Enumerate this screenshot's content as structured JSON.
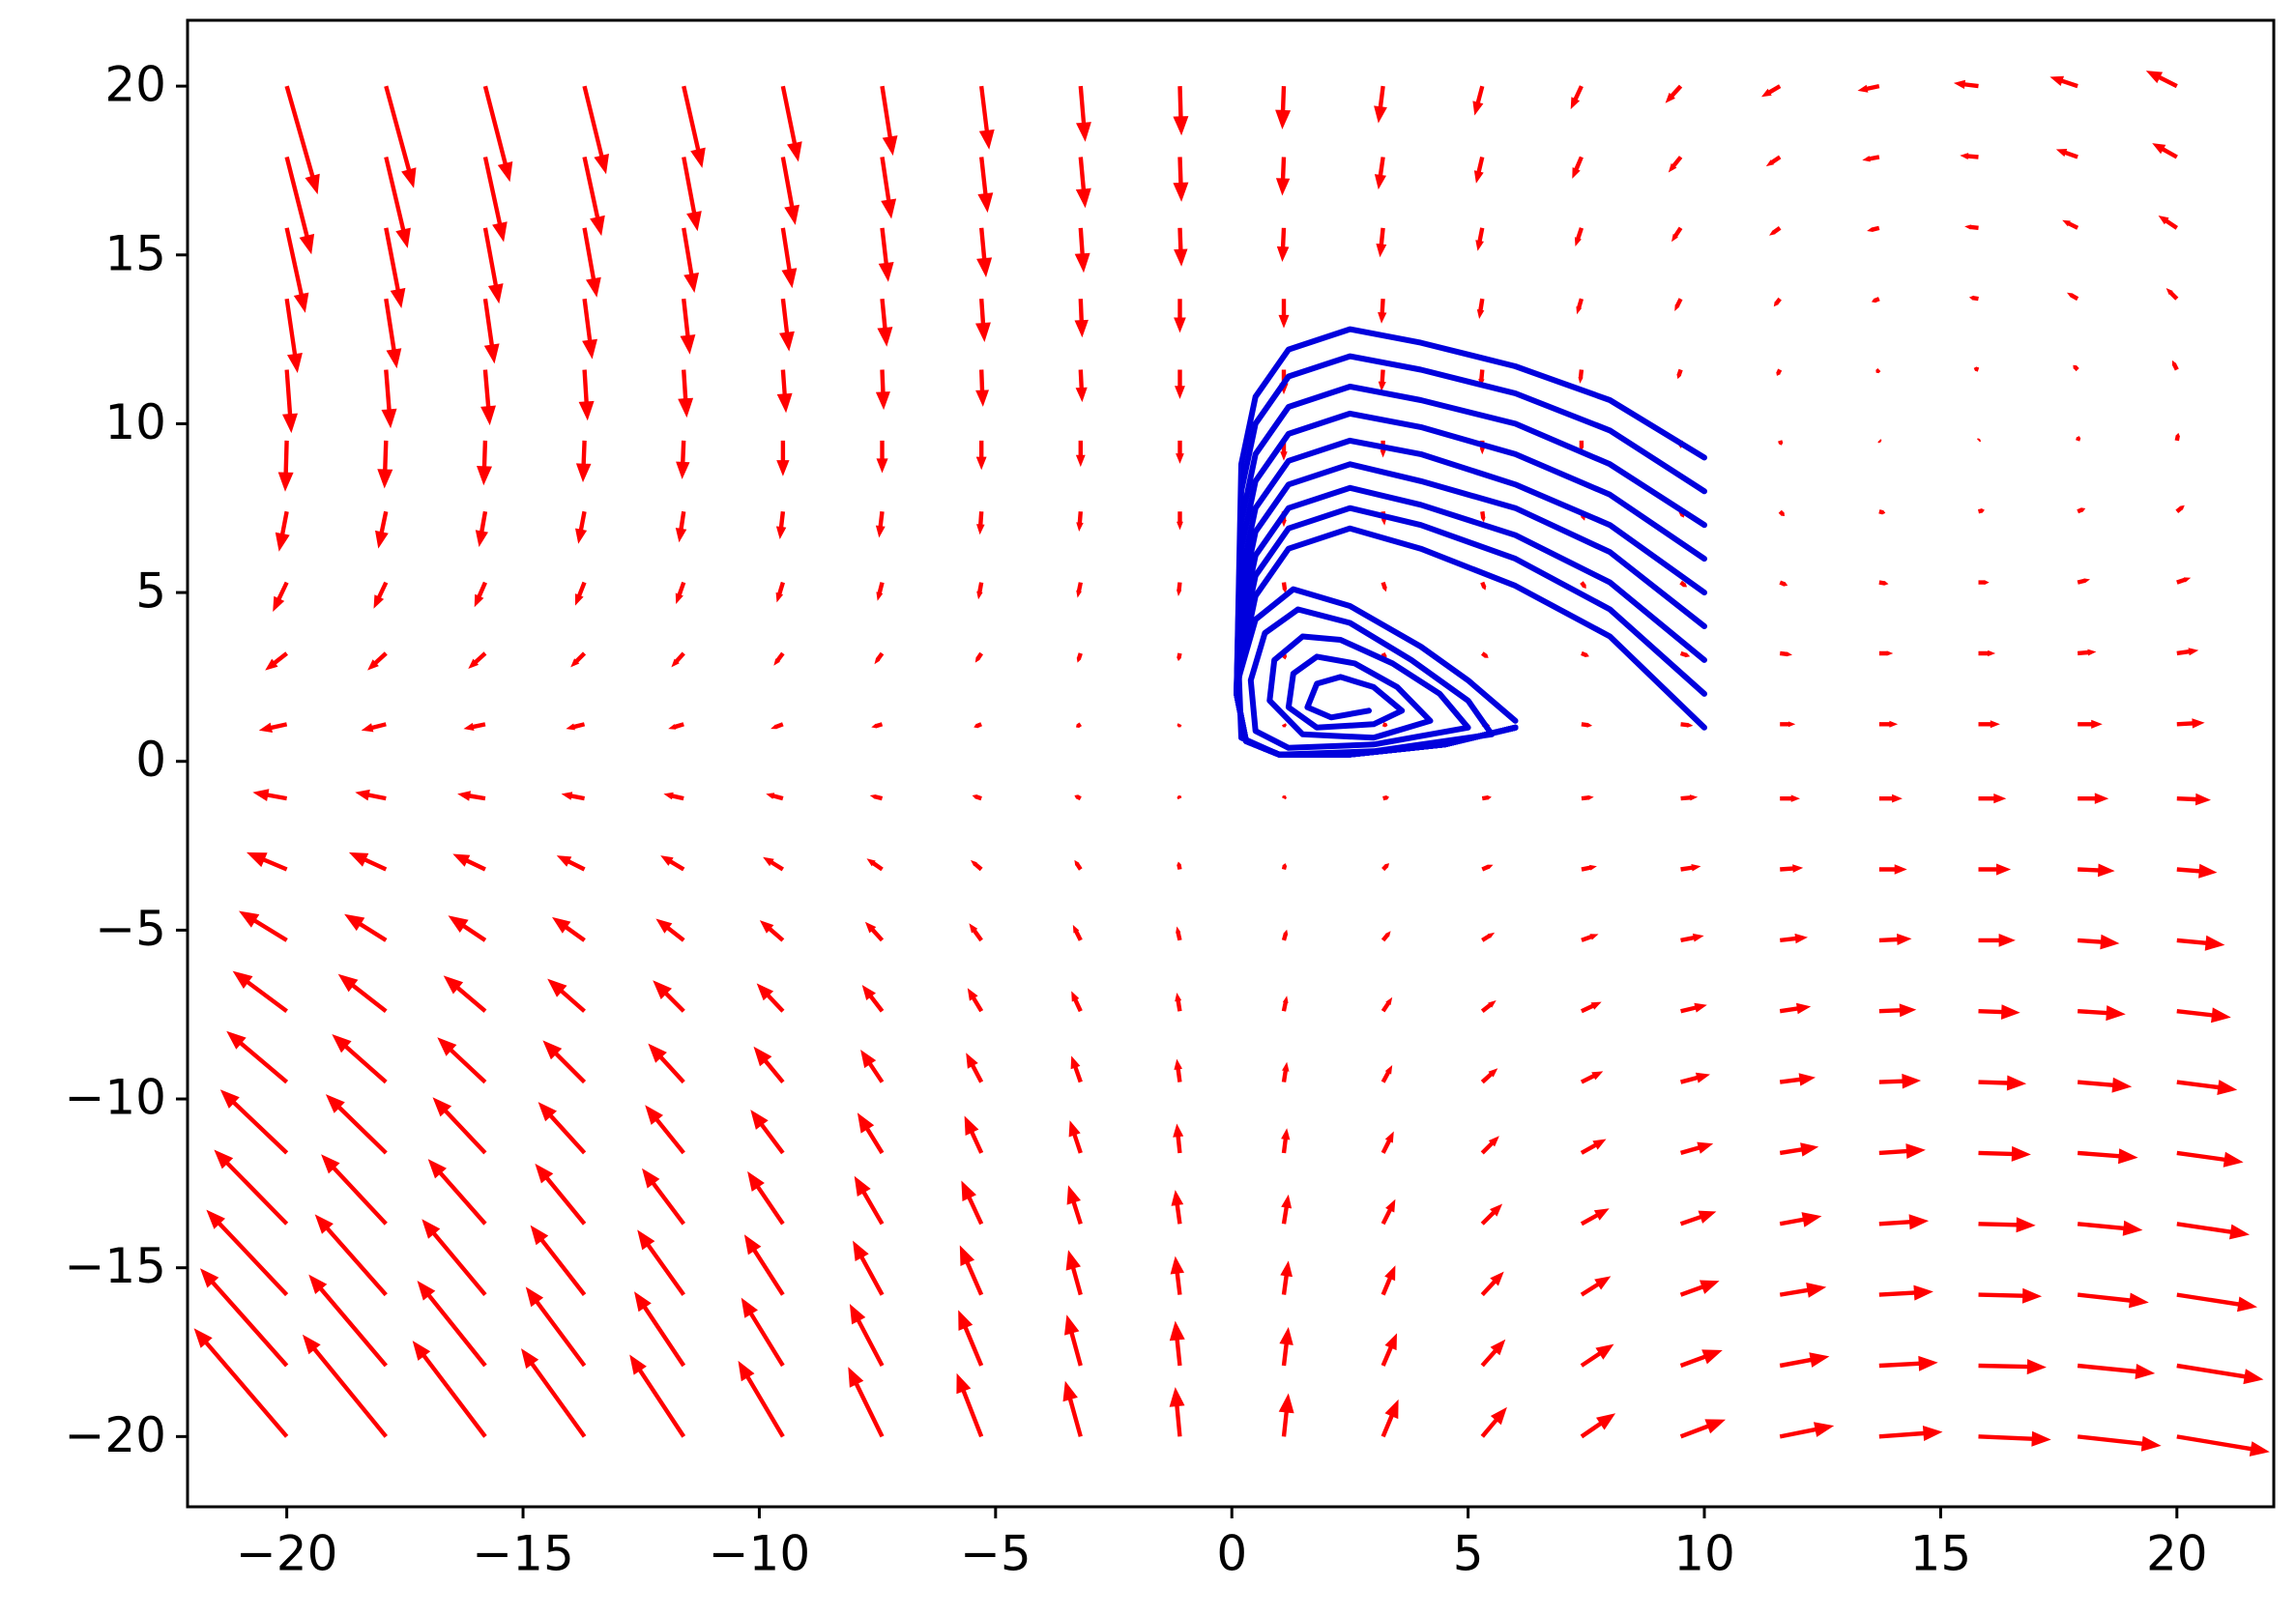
{
  "chart_data": {
    "type": "quiver",
    "arrow_color": "#ff0000",
    "trajectory_color": "#0000dd",
    "xlim": [
      -22.1,
      22.05
    ],
    "ylim": [
      -22.08,
      21.95
    ],
    "xticks": [
      {
        "value": -20,
        "label": "−20"
      },
      {
        "value": -15,
        "label": "−15"
      },
      {
        "value": -10,
        "label": "−10"
      },
      {
        "value": -5,
        "label": "−5"
      },
      0,
      5,
      10,
      15,
      20
    ],
    "yticks": [
      {
        "value": -20,
        "label": "−20"
      },
      {
        "value": -15,
        "label": "−15"
      },
      {
        "value": -10,
        "label": "−10"
      },
      {
        "value": -5,
        "label": "−5"
      },
      0,
      5,
      10,
      15,
      20
    ],
    "x": [
      -20,
      -17.9,
      -15.8,
      -13.7,
      -11.6,
      -9.5,
      -7.4,
      -5.3,
      -3.2,
      -1.1,
      1.1,
      3.2,
      5.3,
      7.4,
      9.5,
      11.6,
      13.7,
      15.8,
      17.9,
      20
    ],
    "y": [
      -20,
      -17.9,
      -15.8,
      -13.7,
      -11.6,
      -9.5,
      -7.4,
      -5.3,
      -3.2,
      -1.1,
      1.1,
      3.2,
      5.3,
      7.4,
      9.5,
      11.6,
      13.7,
      15.8,
      17.9,
      20
    ],
    "u": [
      [
        -60,
        -54,
        -47,
        -41,
        -35,
        -29,
        -22,
        -16,
        -10,
        -3,
        3,
        10,
        16,
        22,
        29,
        35,
        41,
        47,
        54,
        60
      ],
      [
        -56,
        -50,
        -44,
        -38,
        -32,
        -27,
        -21,
        -15,
        -9,
        -3,
        3,
        9,
        15,
        21,
        27,
        32,
        38,
        44,
        50,
        56
      ],
      [
        -52,
        -46,
        -41,
        -35,
        -30,
        -25,
        -19,
        -14,
        -8,
        -3,
        3,
        8,
        14,
        19,
        25,
        30,
        35,
        41,
        46,
        52
      ],
      [
        -47,
        -42,
        -37,
        -32,
        -27,
        -23,
        -18,
        -13,
        -8,
        -3,
        3,
        8,
        13,
        18,
        23,
        27,
        32,
        37,
        42,
        47
      ],
      [
        -43,
        -39,
        -34,
        -30,
        -25,
        -21,
        -16,
        -11,
        -7,
        -2,
        2,
        7,
        11,
        16,
        21,
        25,
        30,
        34,
        39,
        43
      ],
      [
        -39,
        -35,
        -31,
        -27,
        -23,
        -19,
        -14,
        -10,
        -6,
        -2,
        2,
        6,
        10,
        14,
        19,
        23,
        27,
        31,
        35,
        39
      ],
      [
        -35,
        -31,
        -27,
        -24,
        -20,
        -17,
        -13,
        -9,
        -6,
        -2,
        2,
        6,
        9,
        13,
        17,
        20,
        24,
        27,
        31,
        35
      ],
      [
        -31,
        -27,
        -24,
        -21,
        -18,
        -15,
        -11,
        -8,
        -5,
        -2,
        2,
        5,
        8,
        11,
        15,
        18,
        21,
        24,
        27,
        31
      ],
      [
        -26,
        -24,
        -21,
        -18,
        -15,
        -13,
        -10,
        -7,
        -4,
        -1,
        1,
        4,
        7,
        10,
        13,
        15,
        18,
        21,
        24,
        26
      ],
      [
        -22,
        -20,
        -18,
        -15,
        -13,
        -11,
        -8,
        -6,
        -4,
        -1,
        1,
        4,
        6,
        8,
        11,
        13,
        15,
        18,
        20,
        22
      ],
      [
        -18,
        -16,
        -14,
        -12,
        -10,
        -8,
        -7,
        -5,
        -3,
        -1,
        1,
        3,
        5,
        7,
        8,
        10,
        12,
        14,
        16,
        18
      ],
      [
        -14,
        -12,
        -11,
        -9,
        -8,
        -6,
        -5,
        -4,
        -2,
        -1,
        1,
        2,
        4,
        5,
        6,
        8,
        9,
        11,
        12,
        14
      ],
      [
        -9,
        -8,
        -7,
        -6,
        -5,
        -4,
        -3,
        -2,
        -2,
        -1,
        1,
        2,
        2,
        3,
        4,
        5,
        6,
        7,
        8,
        9
      ],
      [
        -5,
        -5,
        -4,
        -4,
        -3,
        -2,
        -2,
        -1,
        -1,
        0,
        0,
        1,
        1,
        2,
        2,
        3,
        4,
        4,
        5,
        5
      ],
      [
        -1,
        -1,
        -1,
        -1,
        -1,
        0,
        0,
        0,
        0,
        0,
        0,
        0,
        0,
        0,
        0,
        1,
        1,
        1,
        1,
        1
      ],
      [
        3,
        3,
        3,
        2,
        2,
        2,
        1,
        1,
        1,
        0,
        0,
        -1,
        -1,
        -1,
        -2,
        -2,
        -2,
        -3,
        -3,
        -3
      ],
      [
        7,
        7,
        6,
        5,
        4,
        4,
        3,
        2,
        1,
        0,
        0,
        -1,
        -2,
        -3,
        -4,
        -4,
        -5,
        -6,
        -7,
        -7
      ],
      [
        12,
        10,
        9,
        8,
        7,
        6,
        4,
        3,
        2,
        1,
        -1,
        -2,
        -3,
        -4,
        -6,
        -7,
        -8,
        -9,
        -10,
        -12
      ],
      [
        16,
        14,
        12,
        11,
        9,
        8,
        6,
        4,
        3,
        1,
        -1,
        -3,
        -4,
        -6,
        -8,
        -9,
        -11,
        -12,
        -14,
        -16
      ],
      [
        20,
        18,
        16,
        14,
        12,
        10,
        7,
        5,
        3,
        1,
        -1,
        -3,
        -5,
        -7,
        -10,
        -12,
        -14,
        -16,
        -18,
        -20
      ]
    ],
    "v": [
      [
        70,
        66,
        62,
        57,
        53,
        49,
        45,
        41,
        36,
        32,
        28,
        24,
        19,
        15,
        11,
        7,
        3,
        -2,
        -6,
        -10
      ],
      [
        63,
        59,
        55,
        51,
        48,
        44,
        40,
        36,
        33,
        29,
        25,
        21,
        17,
        14,
        10,
        6,
        2,
        -1,
        -5,
        -9
      ],
      [
        55,
        52,
        49,
        45,
        42,
        39,
        35,
        32,
        29,
        25,
        22,
        19,
        15,
        12,
        9,
        5,
        2,
        -1,
        -5,
        -8
      ],
      [
        48,
        45,
        42,
        39,
        36,
        34,
        31,
        28,
        25,
        22,
        19,
        16,
        13,
        10,
        8,
        5,
        2,
        -1,
        -4,
        -7
      ],
      [
        41,
        38,
        36,
        33,
        31,
        28,
        26,
        24,
        21,
        19,
        16,
        14,
        11,
        9,
        6,
        4,
        2,
        -1,
        -3,
        -6
      ],
      [
        33,
        31,
        29,
        27,
        25,
        23,
        21,
        19,
        17,
        15,
        13,
        11,
        9,
        7,
        5,
        3,
        1,
        -1,
        -3,
        -5
      ],
      [
        26,
        24,
        23,
        21,
        20,
        18,
        17,
        15,
        13,
        12,
        10,
        9,
        7,
        6,
        4,
        3,
        1,
        -1,
        -2,
        -4
      ],
      [
        19,
        17,
        16,
        15,
        14,
        13,
        12,
        11,
        10,
        9,
        7,
        6,
        5,
        4,
        3,
        2,
        1,
        0,
        -2,
        -3
      ],
      [
        11,
        11,
        10,
        9,
        9,
        8,
        7,
        6,
        6,
        5,
        4,
        4,
        3,
        2,
        2,
        1,
        0,
        0,
        -1,
        -2
      ],
      [
        4,
        4,
        3,
        3,
        3,
        3,
        2,
        2,
        2,
        2,
        2,
        1,
        1,
        1,
        1,
        0,
        0,
        0,
        0,
        -1
      ],
      [
        -4,
        -4,
        -3,
        -3,
        -3,
        -3,
        -2,
        -2,
        -2,
        -2,
        -2,
        -1,
        -1,
        -1,
        -1,
        0,
        0,
        0,
        0,
        1
      ],
      [
        -11,
        -11,
        -10,
        -9,
        -9,
        -8,
        -7,
        -6,
        -6,
        -5,
        -4,
        -4,
        -3,
        -2,
        -2,
        -1,
        0,
        0,
        1,
        2
      ],
      [
        -19,
        -17,
        -16,
        -15,
        -14,
        -13,
        -12,
        -11,
        -10,
        -9,
        -7,
        -6,
        -5,
        -4,
        -3,
        -2,
        -1,
        0,
        2,
        3
      ],
      [
        -26,
        -24,
        -23,
        -21,
        -20,
        -18,
        -17,
        -15,
        -13,
        -12,
        -10,
        -9,
        -7,
        -6,
        -4,
        -3,
        -1,
        1,
        2,
        4
      ],
      [
        -33,
        -31,
        -29,
        -27,
        -25,
        -23,
        -21,
        -19,
        -17,
        -15,
        -13,
        -11,
        -9,
        -7,
        -5,
        -3,
        -1,
        1,
        3,
        5
      ],
      [
        -41,
        -38,
        -36,
        -33,
        -31,
        -28,
        -26,
        -24,
        -21,
        -19,
        -16,
        -14,
        -11,
        -9,
        -6,
        -4,
        -2,
        1,
        3,
        6
      ],
      [
        -48,
        -45,
        -42,
        -39,
        -36,
        -34,
        -31,
        -28,
        -25,
        -22,
        -19,
        -16,
        -13,
        -10,
        -8,
        -5,
        -2,
        1,
        4,
        7
      ],
      [
        -55,
        -52,
        -49,
        -45,
        -42,
        -39,
        -35,
        -32,
        -29,
        -25,
        -22,
        -19,
        -15,
        -12,
        -9,
        -5,
        -2,
        1,
        5,
        8
      ],
      [
        -63,
        -59,
        -55,
        -51,
        -48,
        -44,
        -40,
        -36,
        -33,
        -29,
        -25,
        -21,
        -17,
        -14,
        -10,
        -6,
        -2,
        1,
        5,
        9
      ],
      [
        -70,
        -66,
        -62,
        -57,
        -53,
        -49,
        -45,
        -41,
        -36,
        -32,
        -28,
        -24,
        -19,
        -15,
        -11,
        -7,
        -3,
        2,
        6,
        10
      ]
    ],
    "trajectories": [
      {
        "x": [
          10,
          8,
          6,
          4,
          2.5,
          1.2,
          0.5,
          0.2,
          0.1,
          0.3,
          1,
          2.5,
          4.5,
          6
        ],
        "y": [
          9,
          10.7,
          11.7,
          12.4,
          12.8,
          12.2,
          10.8,
          8.8,
          2,
          0.6,
          0.2,
          0.2,
          0.5,
          1.0
        ]
      },
      {
        "x": [
          10,
          8,
          6,
          4,
          2.5,
          1.2,
          0.5,
          0.2,
          0.1,
          0.3,
          1,
          2.5,
          4.5,
          6
        ],
        "y": [
          8,
          9.8,
          10.9,
          11.6,
          12,
          11.4,
          10,
          8,
          2,
          0.6,
          0.2,
          0.2,
          0.5,
          1.0
        ]
      },
      {
        "x": [
          10,
          8,
          6,
          4,
          2.5,
          1.2,
          0.5,
          0.2,
          0.1,
          0.3,
          1,
          2.5,
          4.5,
          6
        ],
        "y": [
          7,
          8.8,
          10,
          10.7,
          11.1,
          10.5,
          9.1,
          7.1,
          2,
          0.6,
          0.2,
          0.2,
          0.5,
          1.0
        ]
      },
      {
        "x": [
          10,
          8,
          6,
          4,
          2.5,
          1.2,
          0.5,
          0.2,
          0.1,
          0.3,
          1,
          2.5,
          4.5,
          6
        ],
        "y": [
          6,
          7.9,
          9.1,
          9.9,
          10.3,
          9.7,
          8.3,
          6.3,
          2,
          0.6,
          0.2,
          0.2,
          0.5,
          1.0
        ]
      },
      {
        "x": [
          10,
          8,
          6,
          4,
          2.5,
          1.2,
          0.5,
          0.2,
          0.1,
          0.3,
          1,
          2.5,
          4.5,
          6
        ],
        "y": [
          5,
          7,
          8.2,
          9.1,
          9.5,
          8.9,
          7.5,
          5.5,
          2,
          0.6,
          0.2,
          0.2,
          0.5,
          1.0
        ]
      },
      {
        "x": [
          10,
          8,
          6,
          4,
          2.5,
          1.2,
          0.5,
          0.2,
          0.1,
          0.3,
          1,
          2.5,
          4.5,
          6
        ],
        "y": [
          4,
          6.2,
          7.5,
          8.3,
          8.8,
          8.2,
          6.8,
          4.8,
          2,
          0.6,
          0.2,
          0.2,
          0.5,
          1.0
        ]
      },
      {
        "x": [
          10,
          8,
          6,
          4,
          2.5,
          1.2,
          0.5,
          0.2,
          0.1,
          0.3,
          1,
          2.5,
          4.5,
          6
        ],
        "y": [
          3,
          5.3,
          6.7,
          7.6,
          8.1,
          7.5,
          6.1,
          4.1,
          2,
          0.6,
          0.2,
          0.2,
          0.5,
          1.0
        ]
      },
      {
        "x": [
          10,
          8,
          6,
          4,
          2.5,
          1.2,
          0.5,
          0.2,
          0.1,
          0.3,
          1,
          2.5,
          4.5,
          6
        ],
        "y": [
          2,
          4.5,
          6,
          7,
          7.5,
          6.9,
          5.5,
          3.5,
          2,
          0.6,
          0.2,
          0.2,
          0.5,
          1.0
        ]
      },
      {
        "x": [
          10,
          8,
          6,
          4,
          2.5,
          1.2,
          0.5,
          0.2,
          0.1,
          0.3,
          1,
          2.5,
          4.5,
          6
        ],
        "y": [
          1,
          3.7,
          5.2,
          6.3,
          6.9,
          6.3,
          4.9,
          2.9,
          2,
          0.6,
          0.2,
          0.2,
          0.5,
          1.0
        ]
      },
      {
        "x": [
          6,
          5,
          4,
          2.5,
          1.3,
          0.5,
          0.15,
          0.2,
          1,
          3,
          5.5,
          5,
          3.8,
          2.5,
          1.4,
          0.7,
          0.4,
          0.5,
          1.2,
          3,
          5,
          4.4,
          3.4,
          2.3,
          1.5,
          0.9,
          0.8,
          1.5,
          3,
          4.2,
          3.5,
          2.6,
          1.8,
          1.3,
          1.2,
          1.8,
          3,
          3.6,
          3,
          2.3,
          1.8,
          1.6,
          2.1,
          2.9
        ],
        "y": [
          1.2,
          2.4,
          3.4,
          4.6,
          5.1,
          4.2,
          2.5,
          0.7,
          0.2,
          0.3,
          0.8,
          1.8,
          3,
          4.1,
          4.5,
          3.8,
          2.4,
          0.9,
          0.4,
          0.5,
          1,
          2,
          2.9,
          3.6,
          3.7,
          3,
          1.8,
          0.8,
          0.7,
          1.2,
          2.2,
          2.9,
          3.1,
          2.6,
          1.6,
          1,
          1.1,
          1.5,
          2.2,
          2.5,
          2.3,
          1.6,
          1.3,
          1.5
        ]
      }
    ]
  }
}
